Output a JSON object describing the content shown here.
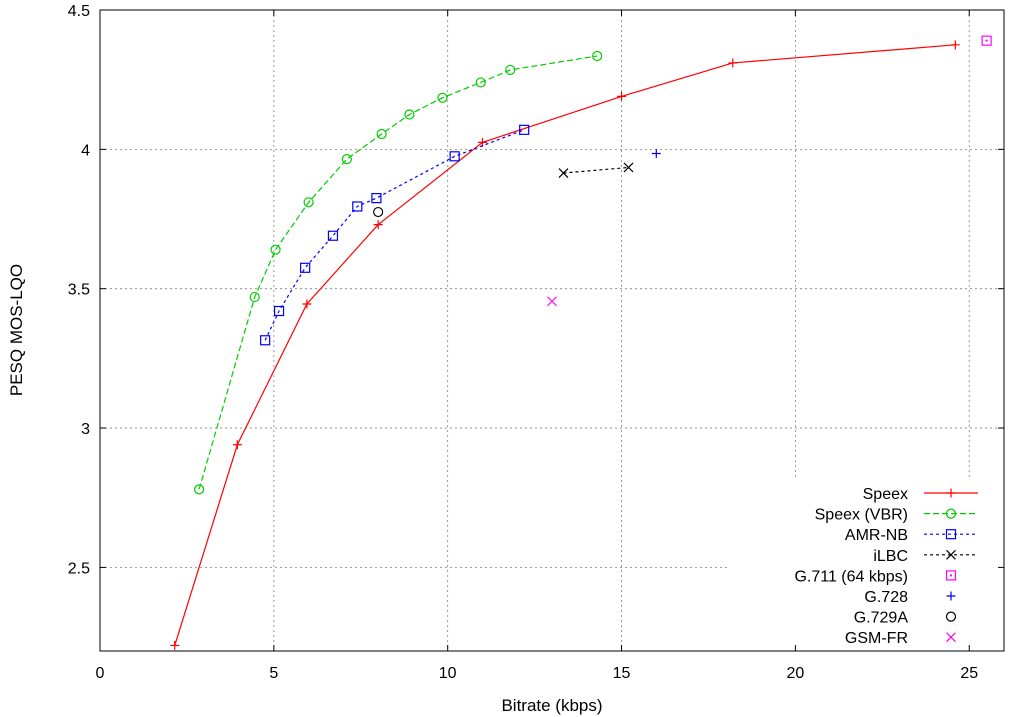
{
  "chart_data": {
    "type": "line",
    "title": "",
    "xlabel": "Bitrate (kbps)",
    "ylabel": "PESQ MOS-LQO",
    "xlim": [
      0,
      26
    ],
    "ylim": [
      2.2,
      4.5
    ],
    "xticks": [
      0,
      5,
      10,
      15,
      20,
      25
    ],
    "yticks": [
      2.5,
      3,
      3.5,
      4,
      4.5
    ],
    "xtick_labels": [
      "0",
      "5",
      "10",
      "15",
      "20",
      "25"
    ],
    "ytick_labels": [
      "2.5",
      "3",
      "3.5",
      "4",
      "4.5"
    ],
    "grid": true,
    "legend_position": "bottom-right",
    "series": [
      {
        "name": "Speex",
        "color": "#ff0000",
        "style": "solid",
        "marker": "plus",
        "x": [
          2.15,
          3.95,
          5.95,
          8.0,
          11.0,
          15.0,
          18.2,
          24.6
        ],
        "y": [
          2.22,
          2.94,
          3.445,
          3.73,
          4.025,
          4.19,
          4.31,
          4.375
        ]
      },
      {
        "name": "Speex (VBR)",
        "color": "#00cc00",
        "style": "dashed",
        "marker": "circle",
        "x": [
          2.85,
          4.45,
          5.05,
          6.0,
          7.1,
          8.1,
          8.9,
          9.85,
          10.95,
          11.8,
          14.3
        ],
        "y": [
          2.78,
          3.47,
          3.64,
          3.81,
          3.965,
          4.055,
          4.125,
          4.185,
          4.24,
          4.285,
          4.335
        ]
      },
      {
        "name": "AMR-NB",
        "color": "#0000ff",
        "style": "dotted",
        "marker": "square",
        "x": [
          4.75,
          5.15,
          5.9,
          6.7,
          7.4,
          7.95,
          10.2,
          12.2
        ],
        "y": [
          3.315,
          3.42,
          3.575,
          3.69,
          3.795,
          3.825,
          3.975,
          4.07
        ]
      },
      {
        "name": "iLBC",
        "color": "#000000",
        "style": "dotted",
        "marker": "cross",
        "x": [
          13.33,
          15.2
        ],
        "y": [
          3.915,
          3.935
        ]
      },
      {
        "name": "G.711 (64 kbps)",
        "color": "#ff00ff",
        "style": "none",
        "marker": "square-dot",
        "x": [
          25.5
        ],
        "y": [
          4.39
        ]
      },
      {
        "name": "G.728",
        "color": "#0000ff",
        "style": "none",
        "marker": "plus",
        "x": [
          16.0
        ],
        "y": [
          3.985
        ]
      },
      {
        "name": "G.729A",
        "color": "#000000",
        "style": "none",
        "marker": "circle",
        "x": [
          8.0
        ],
        "y": [
          3.775
        ]
      },
      {
        "name": "GSM-FR",
        "color": "#ff00ff",
        "style": "none",
        "marker": "cross",
        "x": [
          13.0
        ],
        "y": [
          3.455
        ]
      }
    ]
  }
}
